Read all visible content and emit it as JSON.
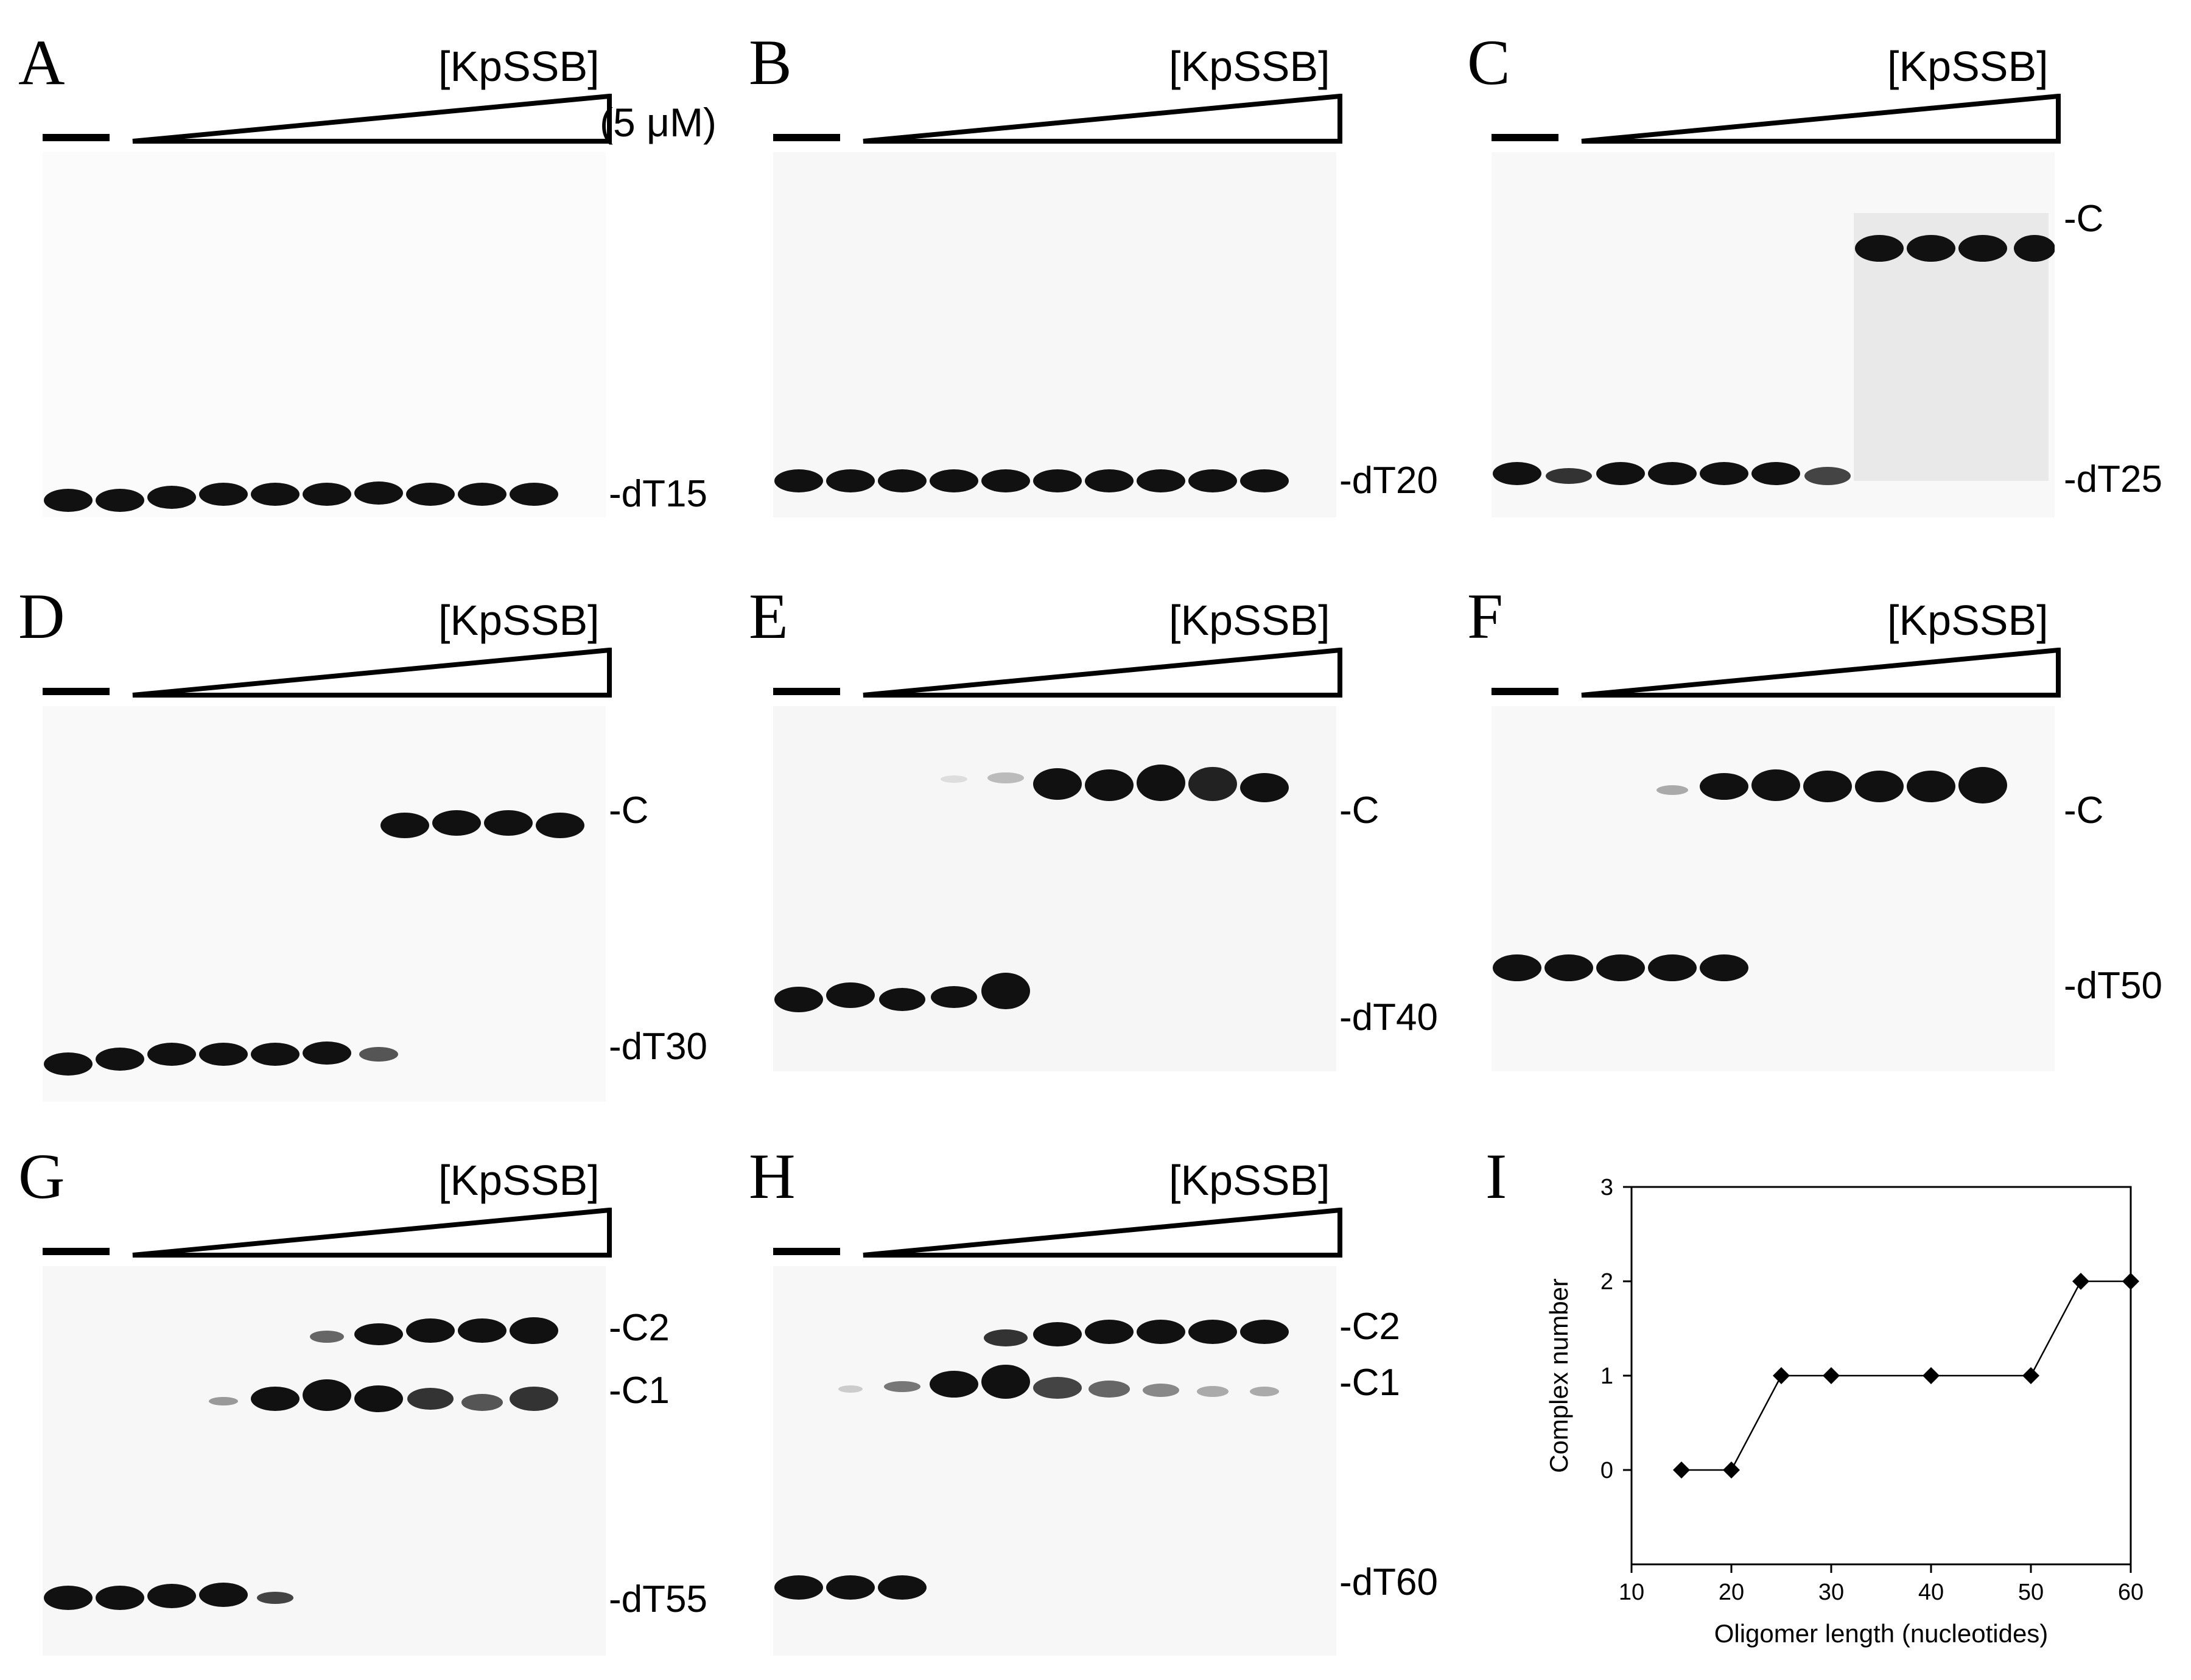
{
  "figure": {
    "reagent_label": "[KpSSB]",
    "concentration_label": "(5 μM)",
    "panels": [
      {
        "letter": "A",
        "substrate": "-dT15",
        "complex_labels": []
      },
      {
        "letter": "B",
        "substrate": "-dT20",
        "complex_labels": []
      },
      {
        "letter": "C",
        "substrate": "-dT25",
        "complex_labels": [
          "-C"
        ]
      },
      {
        "letter": "D",
        "substrate": "-dT30",
        "complex_labels": [
          "-C"
        ]
      },
      {
        "letter": "E",
        "substrate": "-dT40",
        "complex_labels": [
          "-C"
        ]
      },
      {
        "letter": "F",
        "substrate": "-dT50",
        "complex_labels": [
          "-C"
        ]
      },
      {
        "letter": "G",
        "substrate": "-dT55",
        "complex_labels": [
          "-C2",
          "-C1"
        ]
      },
      {
        "letter": "H",
        "substrate": "-dT60",
        "complex_labels": [
          "-C2",
          "-C1"
        ]
      }
    ]
  },
  "chart_panel": {
    "letter": "I"
  },
  "chart_data": {
    "type": "line",
    "x": [
      15,
      20,
      25,
      30,
      40,
      50,
      55,
      60
    ],
    "values": [
      0,
      0,
      1,
      1,
      1,
      1,
      2,
      2
    ],
    "title": "",
    "xlabel": "Oligomer length (nucleotides)",
    "ylabel": "Complex number",
    "xlim": [
      10,
      60
    ],
    "ylim": [
      -1,
      3
    ],
    "xticks": [
      10,
      20,
      30,
      40,
      50,
      60
    ],
    "yticks": [
      0,
      1,
      2,
      3
    ],
    "marker": "diamond",
    "color": "#000000"
  }
}
